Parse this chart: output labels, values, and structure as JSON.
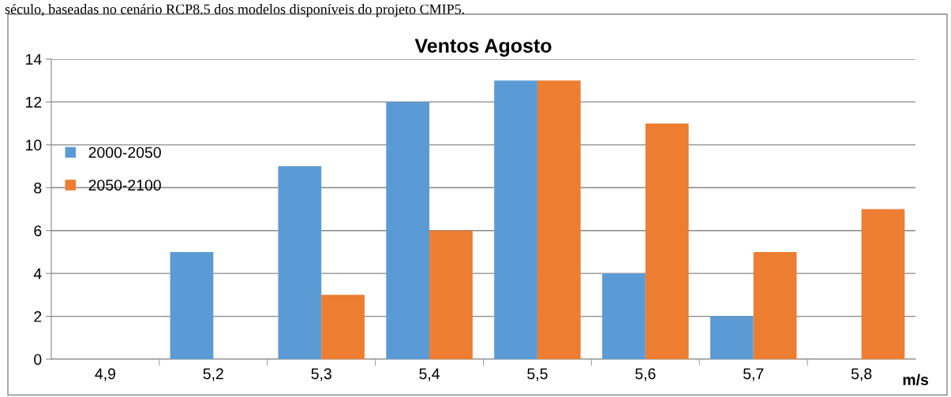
{
  "chart_data": {
    "type": "bar",
    "title": "Ventos Agosto",
    "xlabel": "m/s",
    "annotations": [
      "século, baseadas no cenário RCP8.5 dos modelos disponíveis do projeto CMIP5."
    ],
    "categories": [
      "4,9",
      "5,2",
      "5,3",
      "5,4",
      "5,5",
      "5,6",
      "5,7",
      "5,8"
    ],
    "series": [
      {
        "name": "2000-2050",
        "color": "#5b9bd5",
        "values": [
          0,
          5,
          9,
          12,
          13,
          4,
          2,
          0
        ]
      },
      {
        "name": "2050-2100",
        "color": "#ed7d31",
        "values": [
          0,
          0,
          3,
          6,
          13,
          11,
          5,
          7
        ]
      }
    ],
    "ylim": [
      0,
      14
    ],
    "yticks": [
      0,
      2,
      4,
      6,
      8,
      10,
      12,
      14
    ],
    "grid": "y",
    "legend": "left"
  }
}
